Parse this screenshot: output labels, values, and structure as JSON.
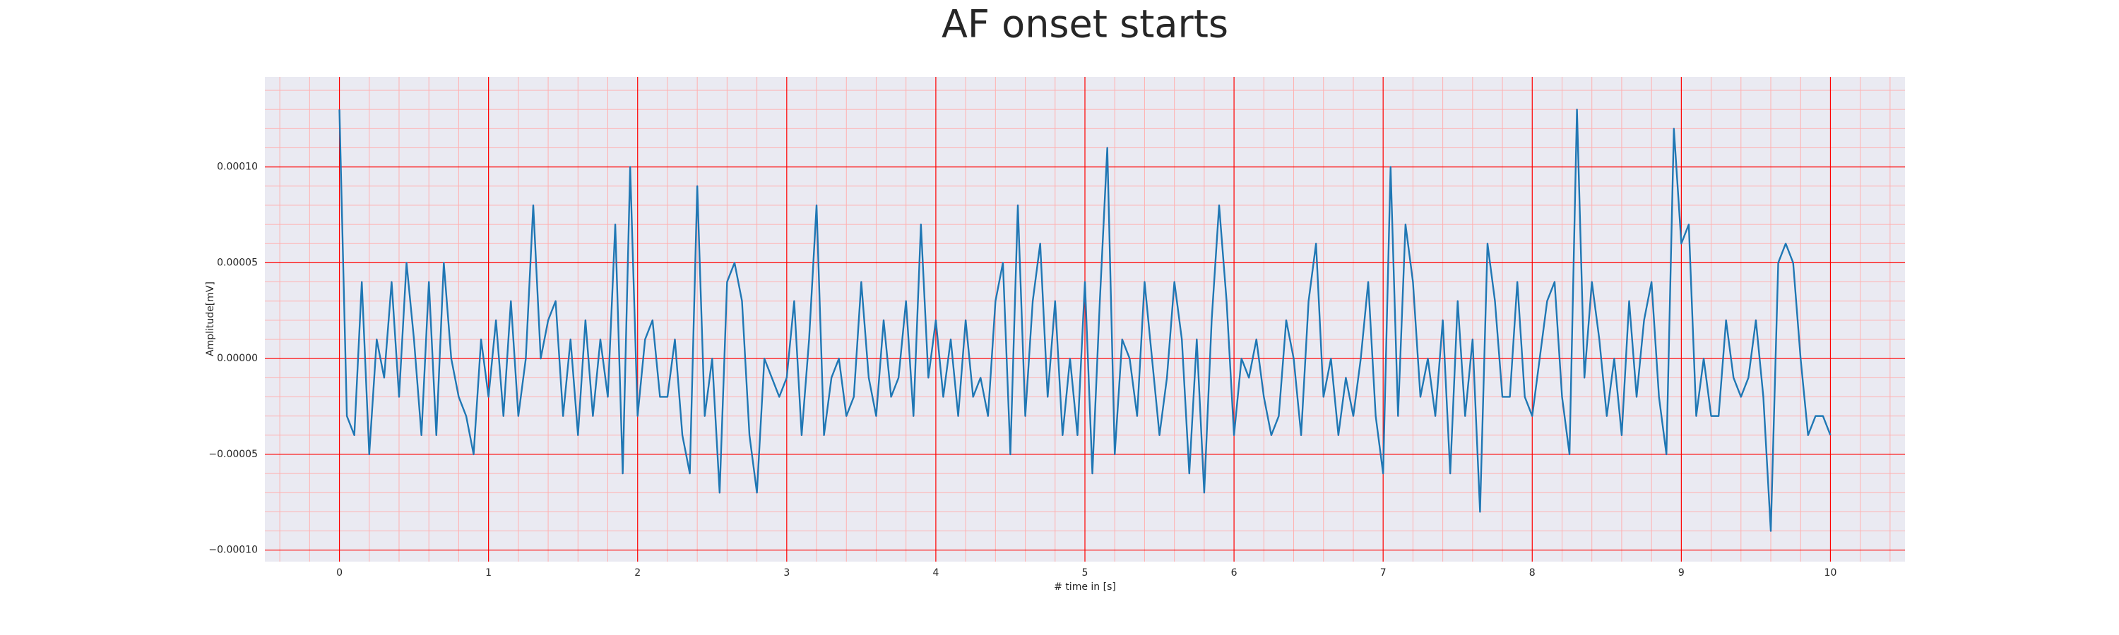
{
  "chart_data": {
    "type": "line",
    "title": "AF onset starts",
    "xlabel": "# time in [s]",
    "ylabel": "Amplitude[mV]",
    "color": "#1f77b4",
    "background": "#eaeaf2",
    "grid": true,
    "grid_color": "#ff0000",
    "minor_grid_color": "#ffb0b0",
    "xlim": [
      -0.5,
      10.5
    ],
    "ylim": [
      -0.000106,
      0.000147
    ],
    "xticks": [
      0,
      1,
      2,
      3,
      4,
      5,
      6,
      7,
      8,
      9,
      10
    ],
    "yticks": [
      {
        "value": -0.0001,
        "label": "−0.00010"
      },
      {
        "value": -5e-05,
        "label": "−0.00005"
      },
      {
        "value": 0,
        "label": "0.00000"
      },
      {
        "value": 5e-05,
        "label": "0.00005"
      },
      {
        "value": 0.0001,
        "label": "0.00010"
      }
    ],
    "xticks_minor": [
      -0.4,
      -0.2,
      0.2,
      0.4,
      0.6,
      0.8,
      1.2,
      1.4,
      1.6,
      1.8,
      2.2,
      2.4,
      2.6,
      2.8,
      3.2,
      3.4,
      3.6,
      3.8,
      4.2,
      4.4,
      4.6,
      4.8,
      5.2,
      5.4,
      5.6,
      5.8,
      6.2,
      6.4,
      6.6,
      6.8,
      7.2,
      7.4,
      7.6,
      7.8,
      8.2,
      8.4,
      8.6,
      8.8,
      9.2,
      9.4,
      9.6,
      9.8,
      10.2,
      10.4
    ],
    "yticks_minor": [
      -9e-05,
      -8e-05,
      -7e-05,
      -6e-05,
      -4e-05,
      -3e-05,
      -2e-05,
      -1e-05,
      1e-05,
      2e-05,
      3e-05,
      4e-05,
      6e-05,
      7e-05,
      8e-05,
      9e-05,
      0.00011,
      0.00012,
      0.00013,
      0.00014
    ],
    "x": [
      0,
      0.05,
      0.1,
      0.15,
      0.2,
      0.25,
      0.3,
      0.35,
      0.4,
      0.45,
      0.5,
      0.55,
      0.6,
      0.65,
      0.7,
      0.75,
      0.8,
      0.85,
      0.9,
      0.95,
      1,
      1.05,
      1.1,
      1.15,
      1.2,
      1.25,
      1.3,
      1.35,
      1.4,
      1.45,
      1.5,
      1.55,
      1.6,
      1.65,
      1.7,
      1.75,
      1.8,
      1.85,
      1.9,
      1.95,
      2,
      2.05,
      2.1,
      2.15,
      2.2,
      2.25,
      2.3,
      2.35,
      2.4,
      2.45,
      2.5,
      2.55,
      2.6,
      2.65,
      2.7,
      2.75,
      2.8,
      2.85,
      2.9,
      2.95,
      3,
      3.05,
      3.1,
      3.15,
      3.2,
      3.25,
      3.3,
      3.35,
      3.4,
      3.45,
      3.5,
      3.55,
      3.6,
      3.65,
      3.7,
      3.75,
      3.8,
      3.85,
      3.9,
      3.95,
      4,
      4.05,
      4.1,
      4.15,
      4.2,
      4.25,
      4.3,
      4.35,
      4.4,
      4.45,
      4.5,
      4.55,
      4.6,
      4.65,
      4.7,
      4.75,
      4.8,
      4.85,
      4.9,
      4.95,
      5,
      5.05,
      5.1,
      5.15,
      5.2,
      5.25,
      5.3,
      5.35,
      5.4,
      5.45,
      5.5,
      5.55,
      5.6,
      5.65,
      5.7,
      5.75,
      5.8,
      5.85,
      5.9,
      5.95,
      6,
      6.05,
      6.1,
      6.15,
      6.2,
      6.25,
      6.3,
      6.35,
      6.4,
      6.45,
      6.5,
      6.55,
      6.6,
      6.65,
      6.7,
      6.75,
      6.8,
      6.85,
      6.9,
      6.95,
      7,
      7.05,
      7.1,
      7.15,
      7.2,
      7.25,
      7.3,
      7.35,
      7.4,
      7.45,
      7.5,
      7.55,
      7.6,
      7.65,
      7.7,
      7.75,
      7.8,
      7.85,
      7.9,
      7.95,
      8,
      8.05,
      8.1,
      8.15,
      8.2,
      8.25,
      8.3,
      8.35,
      8.4,
      8.45,
      8.5,
      8.55,
      8.6,
      8.65,
      8.7,
      8.75,
      8.8,
      8.85,
      8.9,
      8.95,
      9,
      9.05,
      9.1,
      9.15,
      9.2,
      9.25,
      9.3,
      9.35,
      9.4,
      9.45,
      9.5,
      9.55,
      9.6,
      9.65,
      9.7,
      9.75,
      9.8,
      9.85,
      9.9,
      9.95,
      10
    ],
    "values": [
      0.00013,
      -3e-05,
      -4e-05,
      4e-05,
      -5e-05,
      1e-05,
      -1e-05,
      4e-05,
      -2e-05,
      5e-05,
      1e-05,
      -4e-05,
      4e-05,
      -4e-05,
      5e-05,
      0,
      -2e-05,
      -3e-05,
      -5e-05,
      1e-05,
      -2e-05,
      2e-05,
      -3e-05,
      3e-05,
      -3e-05,
      0,
      8e-05,
      0,
      2e-05,
      3e-05,
      -3e-05,
      1e-05,
      -4e-05,
      2e-05,
      -3e-05,
      1e-05,
      -2e-05,
      7e-05,
      -6e-05,
      0.0001,
      -3e-05,
      1e-05,
      2e-05,
      -2e-05,
      -2e-05,
      1e-05,
      -4e-05,
      -6e-05,
      9e-05,
      -3e-05,
      0,
      -7e-05,
      4e-05,
      5e-05,
      3e-05,
      -4e-05,
      -7e-05,
      0,
      -1e-05,
      -2e-05,
      -1e-05,
      3e-05,
      -4e-05,
      1e-05,
      8e-05,
      -4e-05,
      -1e-05,
      0,
      -3e-05,
      -2e-05,
      4e-05,
      -1e-05,
      -3e-05,
      2e-05,
      -2e-05,
      -1e-05,
      3e-05,
      -3e-05,
      7e-05,
      -1e-05,
      2e-05,
      -2e-05,
      1e-05,
      -3e-05,
      2e-05,
      -2e-05,
      -1e-05,
      -3e-05,
      3e-05,
      5e-05,
      -5e-05,
      8e-05,
      -3e-05,
      3e-05,
      6e-05,
      -2e-05,
      3e-05,
      -4e-05,
      0,
      -4e-05,
      4e-05,
      -6e-05,
      3e-05,
      0.00011,
      -5e-05,
      1e-05,
      0,
      -3e-05,
      4e-05,
      0,
      -4e-05,
      -1e-05,
      4e-05,
      1e-05,
      -6e-05,
      1e-05,
      -7e-05,
      2e-05,
      8e-05,
      3e-05,
      -4e-05,
      0,
      -1e-05,
      1e-05,
      -2e-05,
      -4e-05,
      -3e-05,
      2e-05,
      0,
      -4e-05,
      3e-05,
      6e-05,
      -2e-05,
      0,
      -4e-05,
      -1e-05,
      -3e-05,
      0,
      4e-05,
      -3e-05,
      -6e-05,
      0.0001,
      -3e-05,
      7e-05,
      4e-05,
      -2e-05,
      0,
      -3e-05,
      2e-05,
      -6e-05,
      3e-05,
      -3e-05,
      1e-05,
      -8e-05,
      6e-05,
      3e-05,
      -2e-05,
      -2e-05,
      4e-05,
      -2e-05,
      -3e-05,
      0,
      3e-05,
      4e-05,
      -2e-05,
      -5e-05,
      0.00013,
      -1e-05,
      4e-05,
      1e-05,
      -3e-05,
      0,
      -4e-05,
      3e-05,
      -2e-05,
      2e-05,
      4e-05,
      -2e-05,
      -5e-05,
      0.00012,
      6e-05,
      7e-05,
      -3e-05,
      0,
      -3e-05,
      -3e-05,
      2e-05,
      -1e-05,
      -2e-05,
      -1e-05,
      2e-05,
      -2e-05,
      -9e-05,
      5e-05,
      6e-05,
      5e-05,
      0,
      -4e-05,
      -3e-05,
      -3e-05,
      -4e-05
    ]
  }
}
